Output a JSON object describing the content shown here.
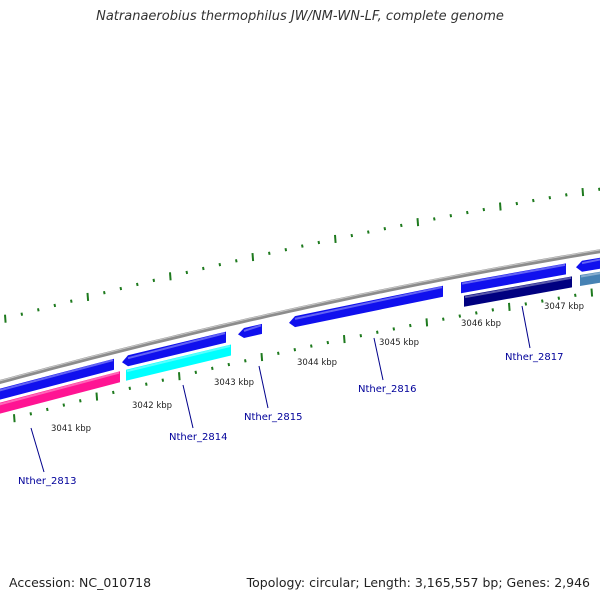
{
  "title": "Natranaerobius thermophilus JW/NM-WN-LF, complete genome",
  "footer": {
    "accession": "Accession: NC_010718",
    "summary": "Topology: circular; Length: 3,165,557 bp; Genes: 2,946"
  },
  "scale_labels": [
    "3041 kbp",
    "3042 kbp",
    "3043 kbp",
    "3044 kbp",
    "3045 kbp",
    "3046 kbp",
    "3047 kbp"
  ],
  "gene_labels": [
    "Nther_2813",
    "Nther_2814",
    "Nther_2815",
    "Nther_2816",
    "Nther_2817"
  ],
  "colors": {
    "backbone": "#8c8c8c",
    "tick": "#1e7a1e",
    "label_line": "#00008b",
    "gene_blue": "#1010ee",
    "gene_pink": "#ff1493",
    "gene_cyan": "#00ffff",
    "gene_navy": "#000080",
    "gene_steel": "#4682b4"
  }
}
